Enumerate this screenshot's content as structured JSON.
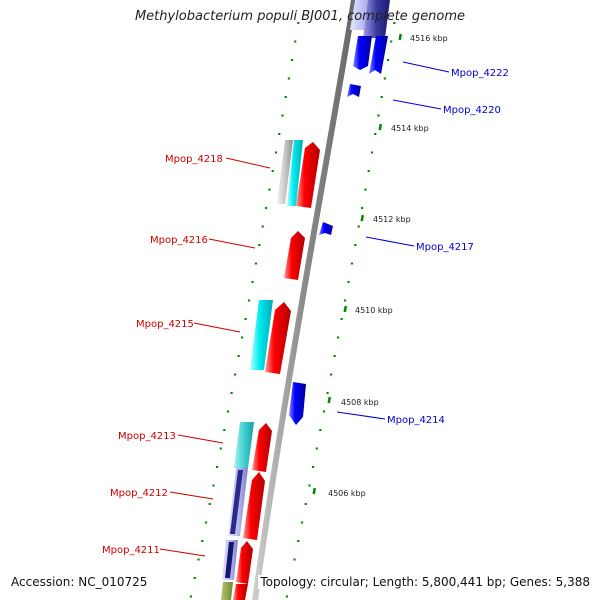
{
  "title": "Methylobacterium populi BJ001, complete genome",
  "footer": {
    "accession": "Accession: NC_010725",
    "summary": "Topology: circular; Length: 5,800,441 bp; Genes: 5,388"
  },
  "colors": {
    "forward_label": "#cc0000",
    "reverse_label": "#0000cc",
    "forward_feature": "#ff0000",
    "reverse_feature": "#0000ff",
    "cyan_feature": "#00e5ee",
    "tick": "#008800",
    "backbone": "#888888"
  },
  "scale_labels": [
    "4516 kbp",
    "4514 kbp",
    "4512 kbp",
    "4510 kbp",
    "4508 kbp",
    "4506 kbp"
  ],
  "forward_genes": [
    "Mpop_4218",
    "Mpop_4216",
    "Mpop_4215",
    "Mpop_4213",
    "Mpop_4212",
    "Mpop_4211"
  ],
  "reverse_genes": [
    "Mpop_4222",
    "Mpop_4220",
    "Mpop_4217",
    "Mpop_4214"
  ]
}
